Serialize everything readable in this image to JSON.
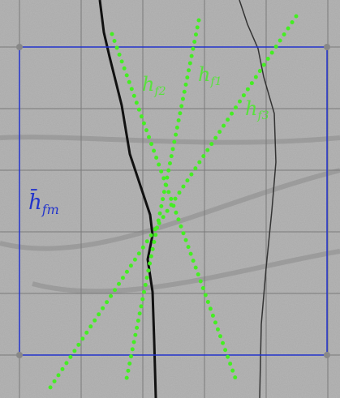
{
  "labels": {
    "mean": {
      "main": "h̄",
      "sub": "fm"
    },
    "f1": {
      "main": "h",
      "sub": "f1"
    },
    "f2": {
      "main": "h",
      "sub": "f2"
    },
    "f3": {
      "main": "h",
      "sub": "f3"
    }
  }
}
